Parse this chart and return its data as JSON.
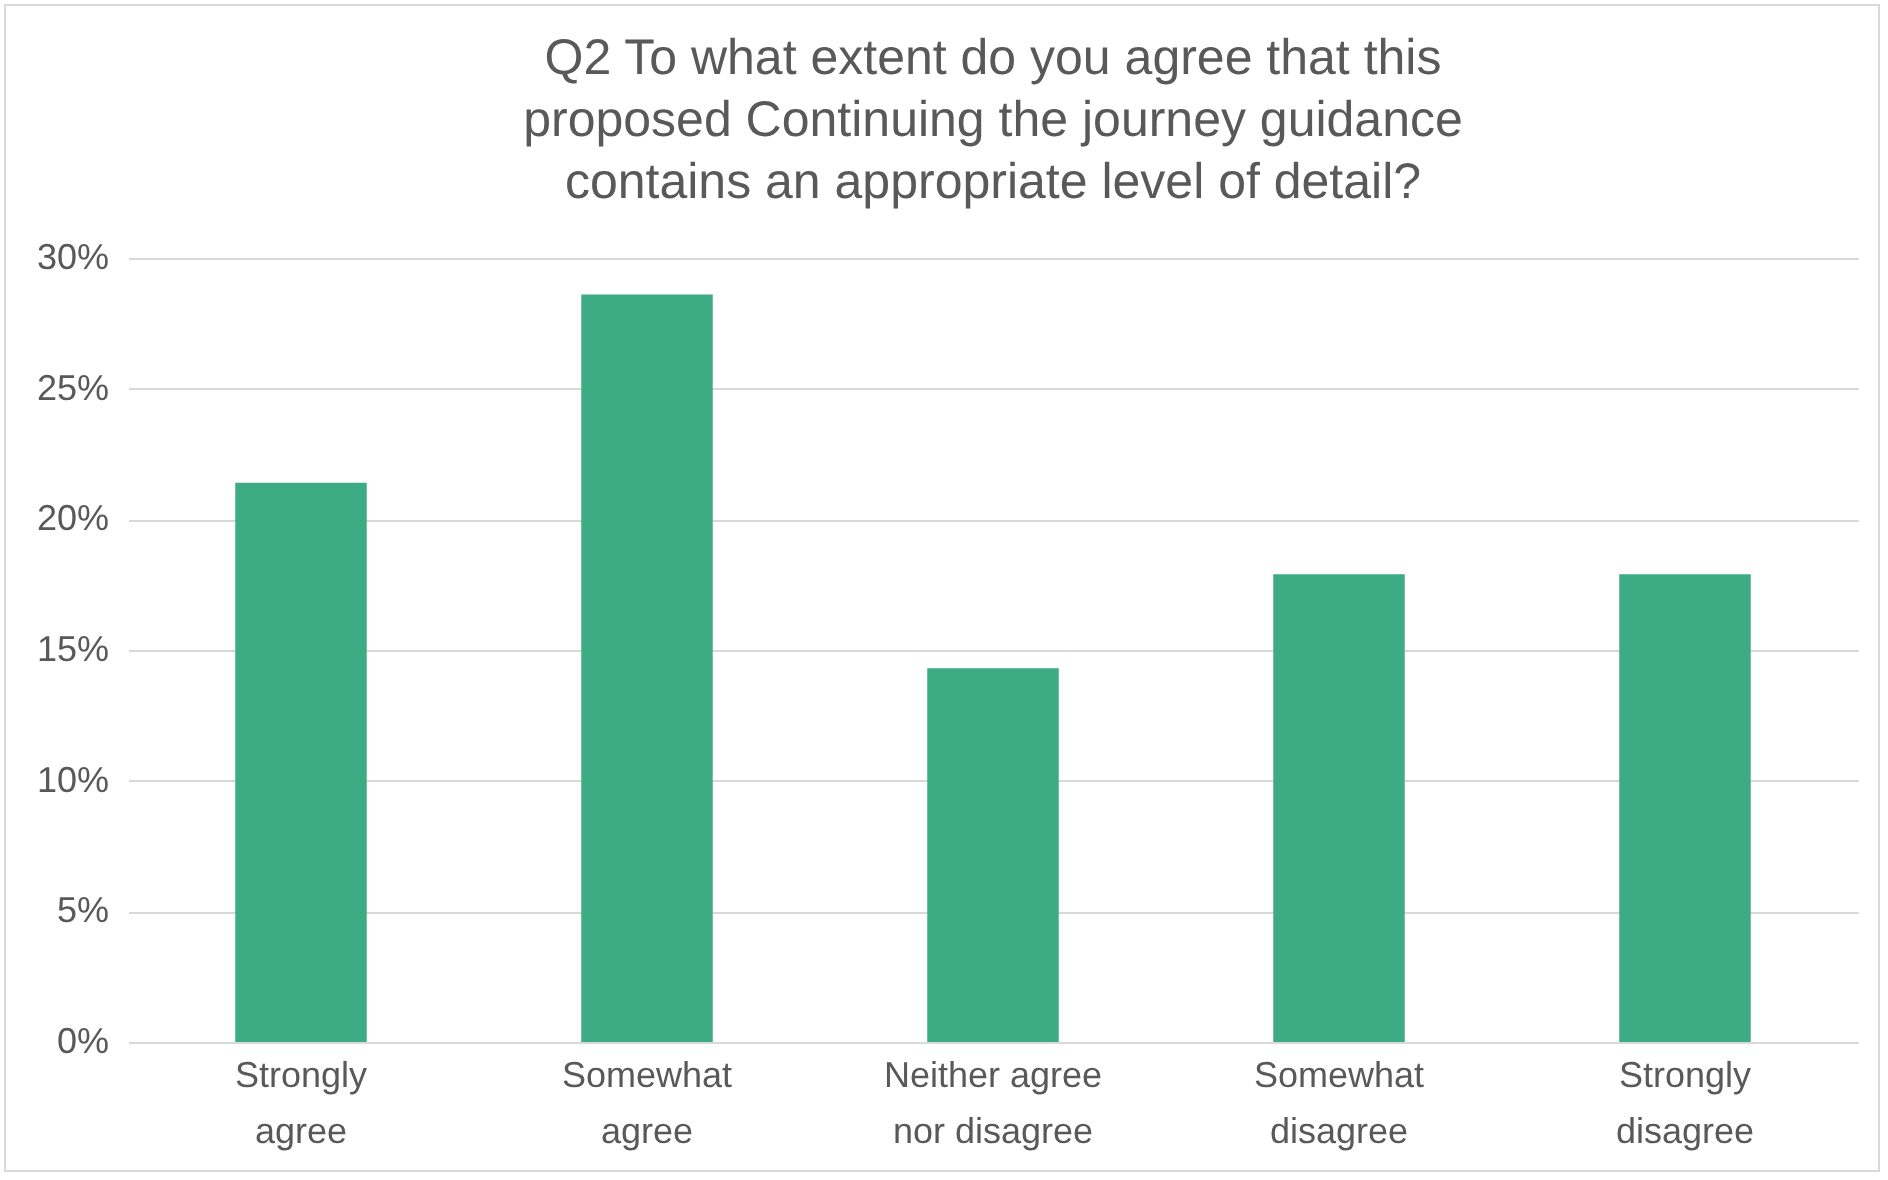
{
  "chart_data": {
    "type": "bar",
    "title": "Q2 To what extent do you agree that this proposed Continuing the journey guidance contains an appropriate level of detail?",
    "categories": [
      "Strongly agree",
      "Somewhat agree",
      "Neither agree nor disagree",
      "Somewhat disagree",
      "Strongly disagree"
    ],
    "values": [
      21.4,
      28.6,
      14.3,
      17.9,
      17.9
    ],
    "color": "#3dab84",
    "ylim": [
      0,
      30
    ],
    "yticks": [
      {
        "value": 0,
        "label": "0%"
      },
      {
        "value": 5,
        "label": "5%"
      },
      {
        "value": 10,
        "label": "10%"
      },
      {
        "value": 15,
        "label": "15%"
      },
      {
        "value": 20,
        "label": "20%"
      },
      {
        "value": 25,
        "label": "25%"
      },
      {
        "value": 30,
        "label": "30%"
      }
    ],
    "grid": "y"
  }
}
